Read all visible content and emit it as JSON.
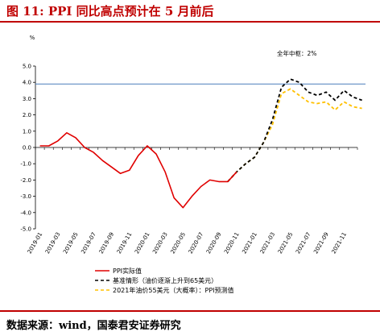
{
  "header": {
    "title": "图 11:    PPI 同比高点预计在 5 月前后"
  },
  "footer": {
    "source": "数据来源：wind，国泰君安证券研究"
  },
  "chart_data": {
    "type": "line",
    "unit_label": "%",
    "annotation": "全年中枢：2%",
    "ylim": [
      -5.0,
      5.0
    ],
    "yticks": [
      "5.0",
      "4.0",
      "3.0",
      "2.0",
      "1.0",
      "0.0",
      "-1.0",
      "-2.0",
      "-3.0",
      "-4.0",
      "-5.0"
    ],
    "xlabels": [
      "2019-01",
      "2019-03",
      "2019-05",
      "2019-07",
      "2019-09",
      "2019-11",
      "2020-01",
      "2020-03",
      "2020-05",
      "2020-07",
      "2020-09",
      "2020-11",
      "2021-01",
      "2021-03",
      "2021-05",
      "2021-07",
      "2021-09",
      "2021-11"
    ],
    "hline": {
      "value": 3.9,
      "color": "#4a7ebb"
    },
    "series": [
      {
        "name": "PPI实际值",
        "color": "#e00000",
        "dash": "solid",
        "x_start": 0,
        "values": [
          0.1,
          0.1,
          0.4,
          0.9,
          0.6,
          0.0,
          -0.3,
          -0.8,
          -1.2,
          -1.6,
          -1.4,
          -0.5,
          0.1,
          -0.4,
          -1.5,
          -3.1,
          -3.7,
          -3.0,
          -2.4,
          -2.0,
          -2.1,
          -2.1,
          -1.5
        ]
      },
      {
        "name": "基准情形（油价逐渐上升到65美元）",
        "color": "#000000",
        "dash": "dashed",
        "x_start": 21,
        "values": [
          -2.1,
          -1.5,
          -1.0,
          -0.6,
          0.3,
          1.7,
          3.7,
          4.2,
          4.0,
          3.4,
          3.2,
          3.4,
          2.9,
          3.5,
          3.1,
          2.9
        ]
      },
      {
        "name": "2021年油价55美元（大概率）：PPI预测值",
        "color": "#ffc000",
        "dash": "dashed",
        "x_start": 21,
        "values": [
          -2.1,
          -1.5,
          -1.0,
          -0.6,
          0.3,
          1.4,
          3.3,
          3.6,
          3.2,
          2.8,
          2.7,
          2.8,
          2.3,
          2.8,
          2.5,
          2.4
        ]
      }
    ]
  }
}
